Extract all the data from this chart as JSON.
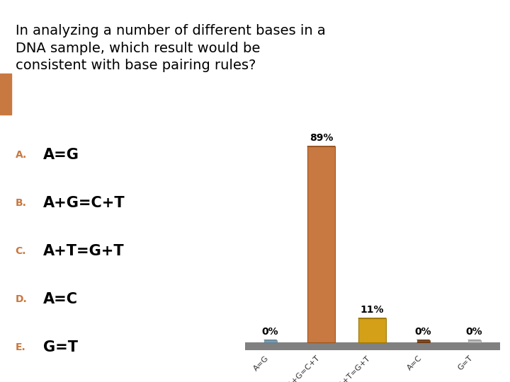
{
  "title_line1": "In analyzing a number of different bases in a",
  "title_line2": "DNA sample, which result would be",
  "title_line3": "consistent with base pairing rules?",
  "options": [
    {
      "label": "A.",
      "text": "A=G"
    },
    {
      "label": "B.",
      "text": "A+G=C+T"
    },
    {
      "label": "C.",
      "text": "A+T=G+T"
    },
    {
      "label": "D.",
      "text": "A=C"
    },
    {
      "label": "E.",
      "text": "G=T"
    }
  ],
  "categories": [
    "A=G",
    "A+G=C+T",
    "A+T=G+T",
    "A=C",
    "G=T"
  ],
  "values": [
    0,
    89,
    11,
    0,
    0
  ],
  "bar_color_tall": "#c87941",
  "bar_color_tall_top": "#d4946a",
  "bar_color_medium": "#d4a017",
  "bar_color_medium_top": "#e8c050",
  "zero_bar_colors": [
    "#7a9fb5",
    "#8B4513",
    "#c8c8c8"
  ],
  "bg_color": "#ffffff",
  "header_bg": "#a8c0d0",
  "orange_accent": "#c87941",
  "gray_platform": "#808080",
  "option_letter_color": "#c87941",
  "option_text_color": "#000000",
  "title_fontsize": 14,
  "option_letter_fontsize": 10,
  "option_text_fontsize": 15,
  "bar_label_fontsize": 10,
  "xtick_fontsize": 8
}
